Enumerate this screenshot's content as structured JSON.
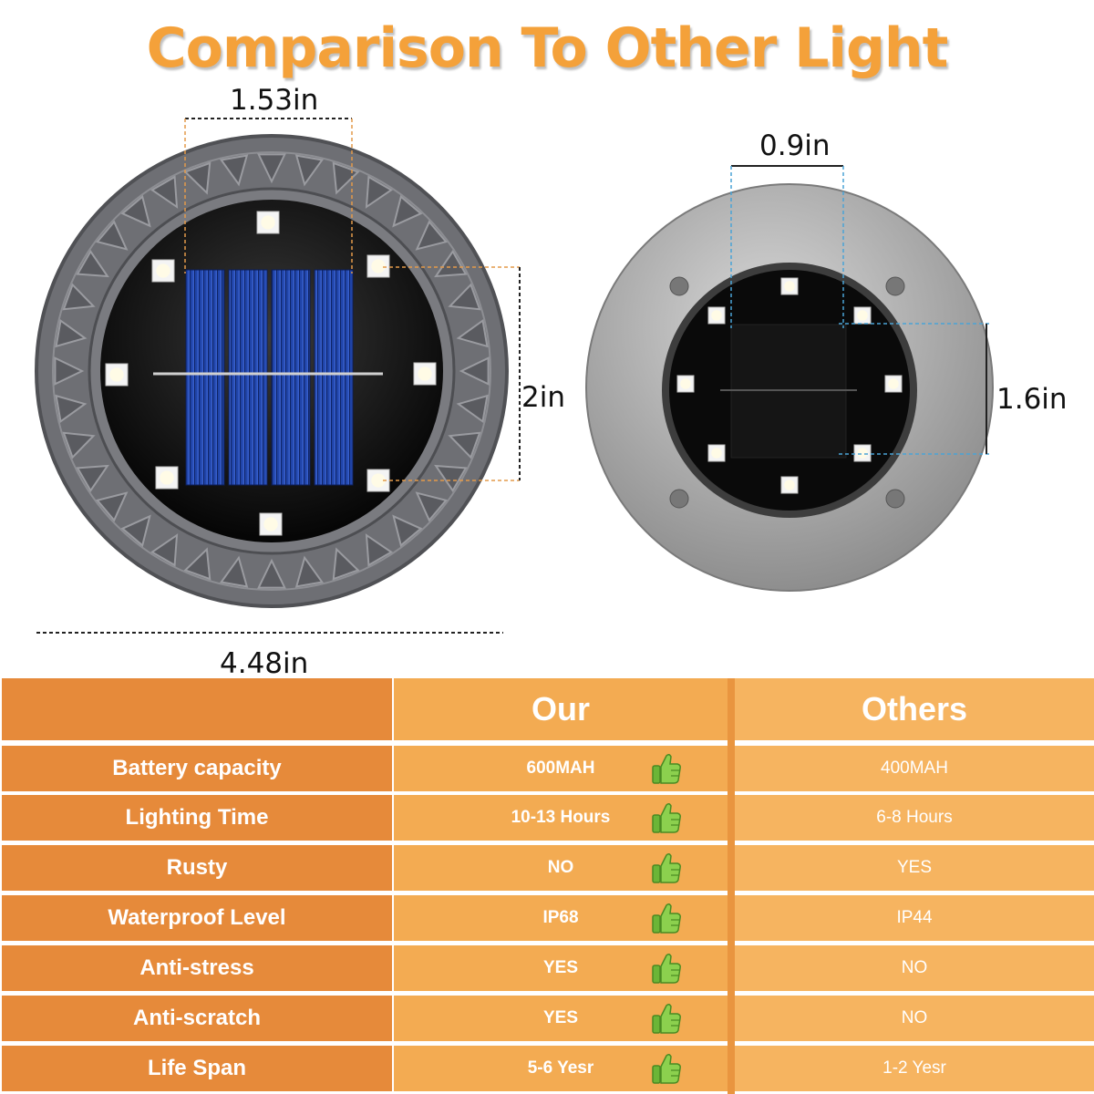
{
  "title": "Comparison To Other Light",
  "dimensions": {
    "our_panel_width": "1.53in",
    "our_panel_height": "2in",
    "our_diameter": "4.48in",
    "other_panel_width": "0.9in",
    "other_panel_height": "1.6in"
  },
  "icons": {
    "thumbs_up": "thumbs-up-icon"
  },
  "colors": {
    "title": "#f4a13a",
    "label_column": "#e68a3a",
    "our_column": "#f3ab52",
    "others_column": "#f6b460",
    "thumb": "#7cc242"
  },
  "table": {
    "headers": {
      "feature": "",
      "our": "Our",
      "others": "Others"
    },
    "rows": [
      {
        "feature": "Battery capacity",
        "our": "600MAH",
        "others": "400MAH"
      },
      {
        "feature": "Lighting Time",
        "our": "10-13 Hours",
        "others": "6-8 Hours"
      },
      {
        "feature": "Rusty",
        "our": "NO",
        "others": "YES"
      },
      {
        "feature": "Waterproof Level",
        "our": "IP68",
        "others": "IP44"
      },
      {
        "feature": "Anti-stress",
        "our": "YES",
        "others": "NO"
      },
      {
        "feature": "Anti-scratch",
        "our": "YES",
        "others": "NO"
      },
      {
        "feature": "Life Span",
        "our": "5-6 Yesr",
        "others": "1-2 Yesr"
      }
    ]
  }
}
